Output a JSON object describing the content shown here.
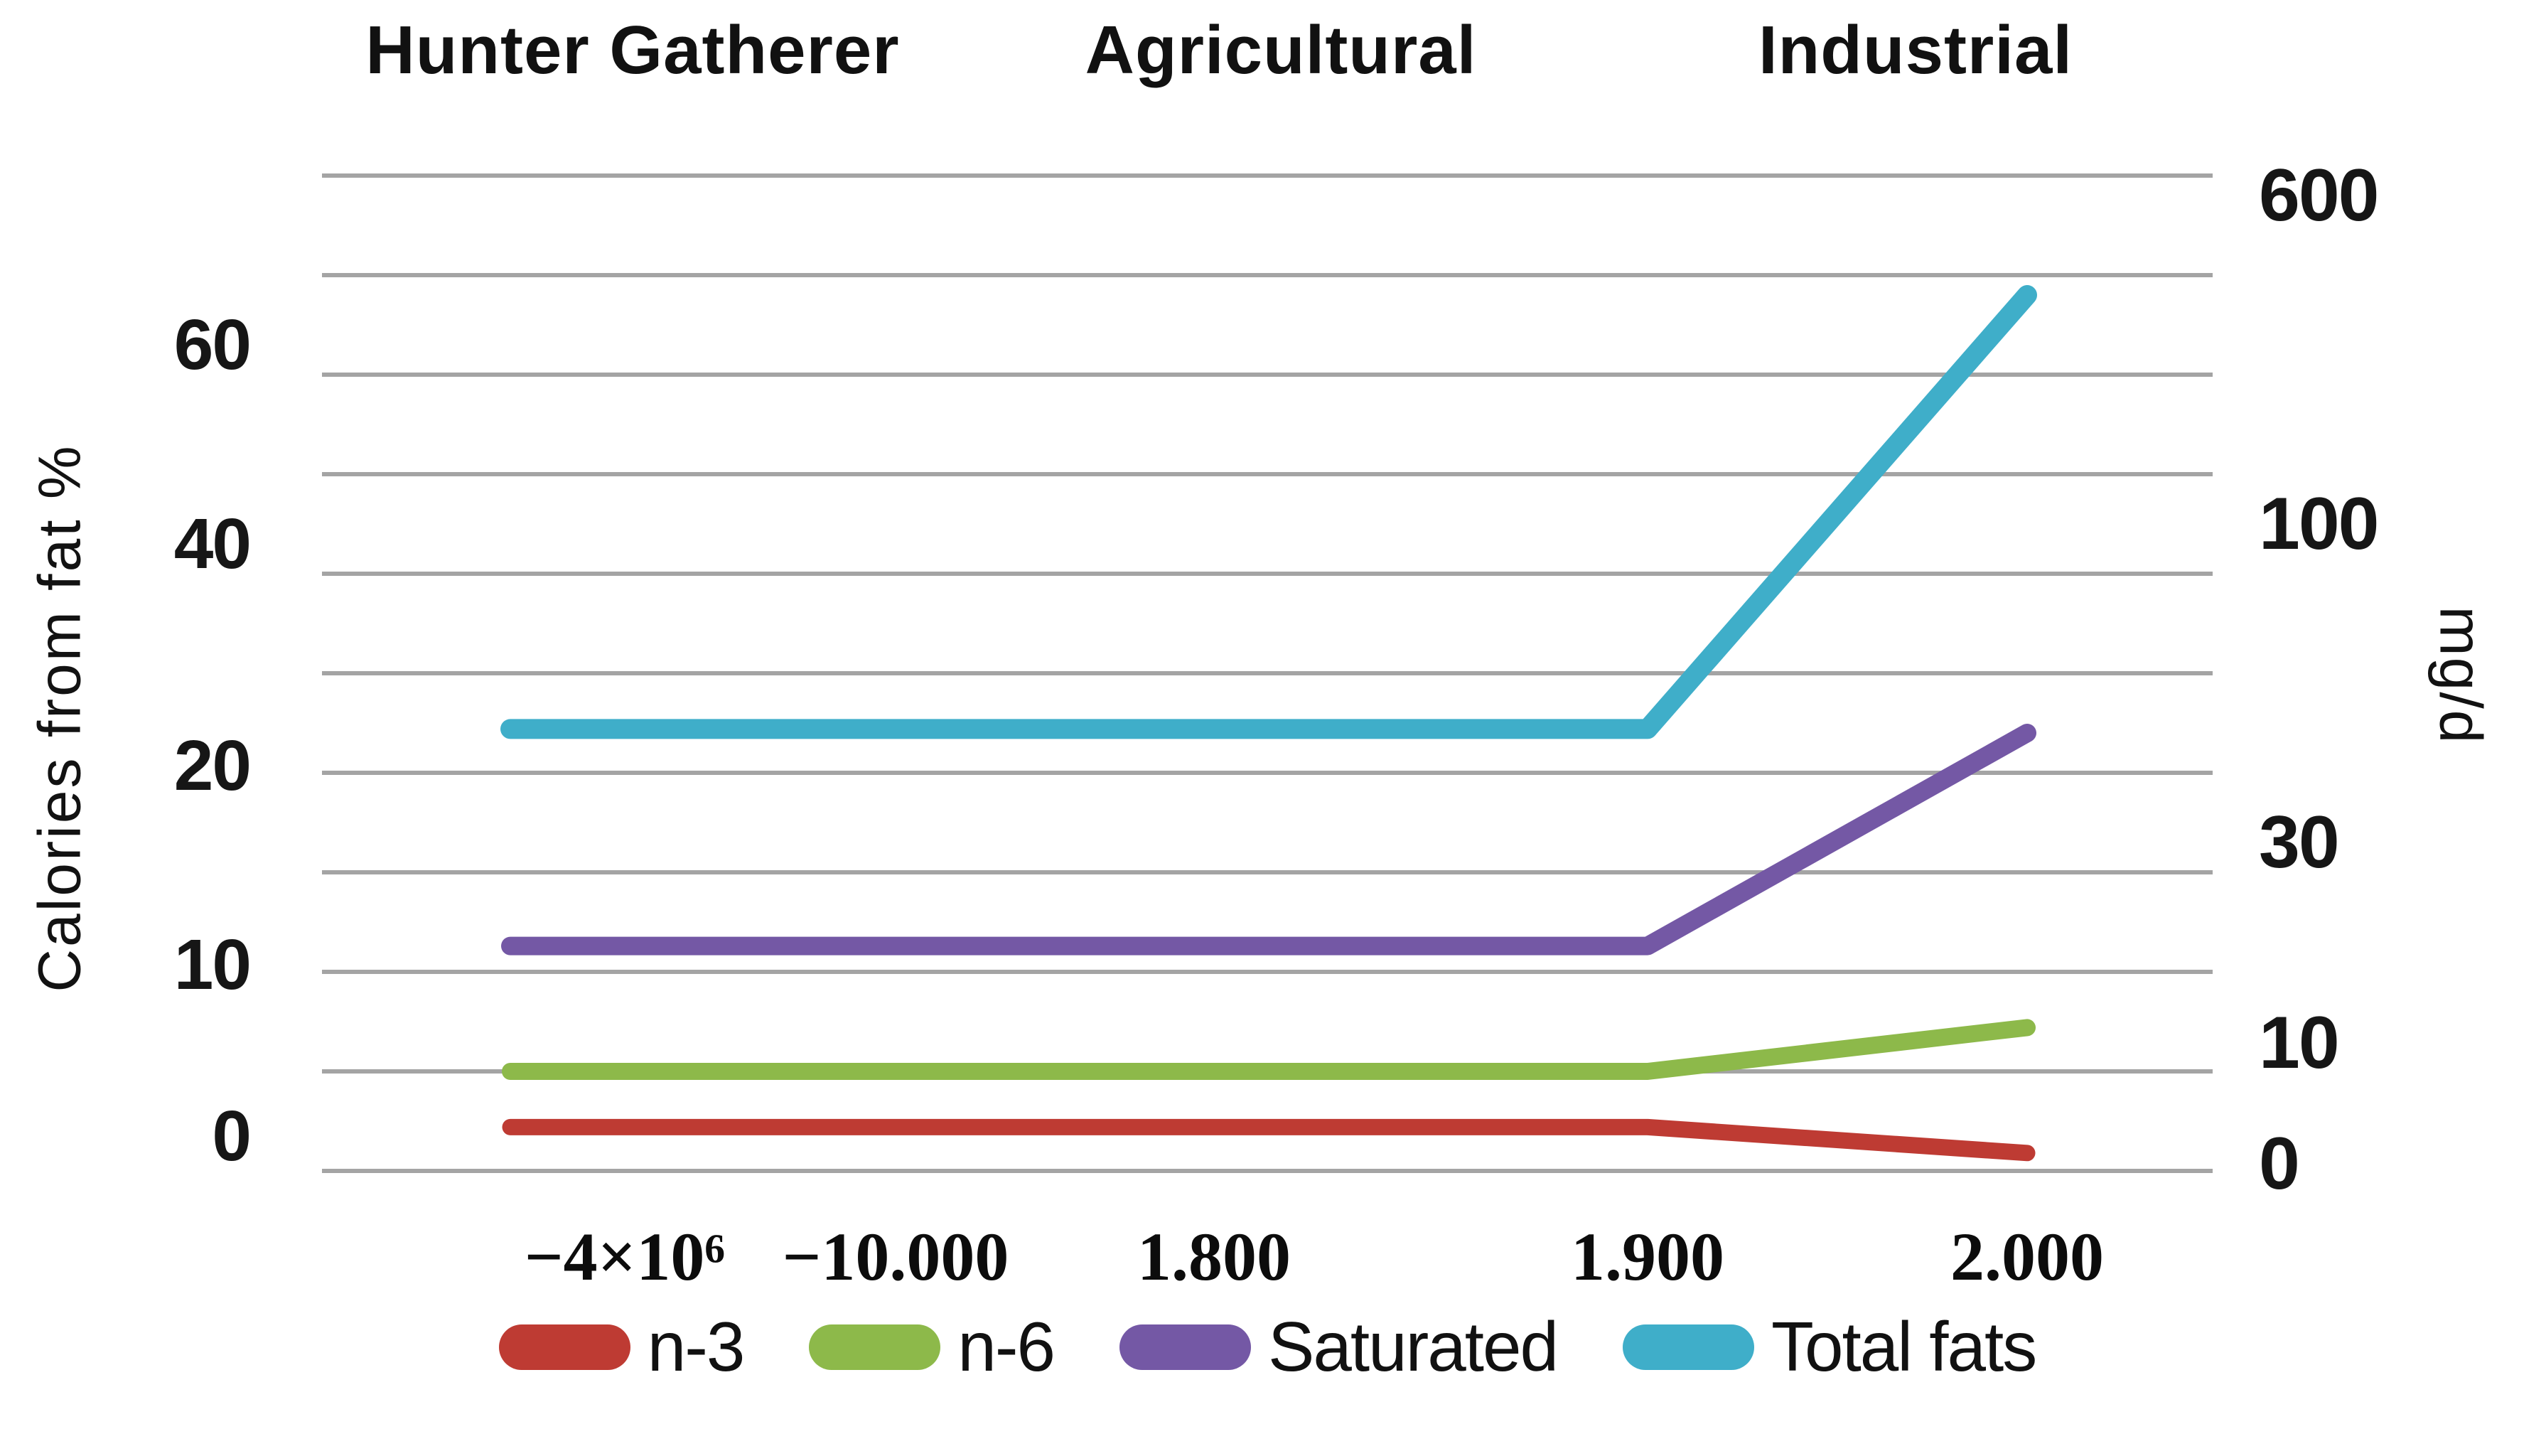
{
  "figure": {
    "era_labels": [
      "Hunter Gatherer",
      "Agricultural",
      "Industrial"
    ],
    "left_axis": {
      "title": "Calories  from fat %",
      "ticks": [
        "60",
        "40",
        "20",
        "10",
        "0"
      ]
    },
    "right_axis": {
      "title": "mg/d",
      "ticks": [
        "600",
        "100",
        "30",
        "10",
        "0"
      ]
    },
    "x_axis": {
      "ticks": [
        "−4×10⁶",
        "−10.000",
        "1.800",
        "1.900",
        "2.000"
      ]
    },
    "legend": [
      {
        "label": "n-3",
        "color": "#be3b33"
      },
      {
        "label": "n-6",
        "color": "#8db94a"
      },
      {
        "label": "Saturated",
        "color": "#7458a5"
      },
      {
        "label": "Total fats",
        "color": "#3faec9"
      }
    ],
    "colors": {
      "gridline": "#a4a4a4",
      "text": "#111111",
      "background": "#ffffff"
    }
  },
  "chart_data": {
    "type": "line",
    "title": "",
    "x_tick_labels": [
      "−4×10⁶",
      "−10.000",
      "1.800",
      "1.900",
      "2.000"
    ],
    "x_meaning": "year (non-linear historical time scale)",
    "era_annotations": [
      "Hunter Gatherer",
      "Agricultural",
      "Industrial"
    ],
    "left_ylabel": "Calories from fat %",
    "right_ylabel": "mg/d",
    "left_axis_tick_values": [
      0,
      10,
      20,
      40,
      60
    ],
    "right_axis_tick_values": [
      0,
      10,
      30,
      100,
      600
    ],
    "grid": "11 evenly spaced horizontal gridlines; value spacing is non-linear (log-like)",
    "legend_position": "bottom",
    "series": [
      {
        "name": "n-3",
        "axis": "left",
        "color": "#be3b33",
        "values": [
          2.2,
          2.2,
          2.2,
          2.2,
          0.9
        ]
      },
      {
        "name": "n-6",
        "axis": "left",
        "color": "#8db94a",
        "values": [
          5.0,
          5.0,
          5.0,
          5.0,
          7.2
        ]
      },
      {
        "name": "Saturated",
        "axis": "left",
        "color": "#7458a5",
        "values": [
          11.3,
          11.3,
          11.3,
          11.3,
          24.0
        ]
      },
      {
        "name": "Total fats",
        "axis": "left",
        "color": "#3faec9",
        "values": [
          24.4,
          24.4,
          24.4,
          24.4,
          68.0
        ]
      }
    ],
    "notes": "All four series are flat from −4×10⁶ through 1.900, then change sharply by 2.000: total fats and saturated fat rise steeply, n-6 rises slightly, n-3 declines. Values in left-axis % units as plotted; left and right axes share the same gridlines with different non-linear labels."
  }
}
